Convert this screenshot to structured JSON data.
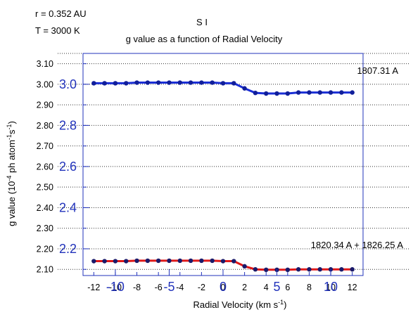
{
  "header": {
    "distance": "r = 0.352 AU",
    "temperature": "T = 3000 K",
    "species": "S I"
  },
  "chart_data": {
    "type": "line",
    "title": "g value as a function of Radial Velocity",
    "xlabel_main": "Radial Velocity (km s",
    "xlabel_sup": "-1",
    "xlabel_end": ")",
    "ylabel": {
      "pre": "g value (10",
      "sup1": "-4",
      "mid": " ph atom",
      "sup2": "-1",
      "mid2": "s",
      "sup3": "-1",
      "post": ")"
    },
    "xlim": [
      -13,
      13
    ],
    "ylim": [
      2.07,
      3.15
    ],
    "x_ticks": [
      -12,
      -10,
      -8,
      -6,
      -4,
      -2,
      0,
      2,
      4,
      6,
      8,
      10,
      12
    ],
    "x_tick_labels": [
      "-12",
      "-10",
      "-8",
      "-6",
      "-4",
      "-2",
      "0",
      "2",
      "4",
      "6",
      "8",
      "10",
      "12"
    ],
    "y_ticks": [
      2.1,
      2.2,
      2.3,
      2.4,
      2.5,
      2.6,
      2.7,
      2.8,
      2.9,
      3.0,
      3.1
    ],
    "y_tick_labels": [
      "2.10",
      "2.20",
      "2.30",
      "2.40",
      "2.50",
      "2.60",
      "2.70",
      "2.80",
      "2.90",
      "3.00",
      "3.10"
    ],
    "grid": "horizontal dotted",
    "overlay_x_ticks": [
      -10,
      -5,
      0,
      5,
      10
    ],
    "overlay_x_labels": [
      "-10",
      "-5",
      "0",
      "5",
      "10"
    ],
    "overlay_y_ticks": [
      2.2,
      2.4,
      2.6,
      2.8,
      3.0
    ],
    "overlay_y_labels": [
      "2.2",
      "2.4",
      "2.6",
      "2.8",
      "3.0"
    ],
    "x": [
      -12,
      -11,
      -10,
      -9,
      -8,
      -7,
      -6,
      -5,
      -4,
      -3,
      -2,
      -1,
      0,
      1,
      2,
      3,
      4,
      5,
      6,
      7,
      8,
      9,
      10,
      11,
      12
    ],
    "series": [
      {
        "name": "1807.31 A",
        "color": "#1a2ed6",
        "marker_color": "#101e9a",
        "values": [
          3.005,
          3.005,
          3.005,
          3.005,
          3.008,
          3.008,
          3.008,
          3.008,
          3.008,
          3.008,
          3.008,
          3.008,
          3.005,
          3.005,
          2.98,
          2.958,
          2.955,
          2.955,
          2.955,
          2.96,
          2.96,
          2.96,
          2.96,
          2.96,
          2.96
        ]
      },
      {
        "name": "1820.34 A + 1826.25 A",
        "color": "#e01818",
        "marker_color": "#1a1a6a",
        "values": [
          2.14,
          2.14,
          2.14,
          2.14,
          2.142,
          2.142,
          2.142,
          2.142,
          2.142,
          2.142,
          2.142,
          2.142,
          2.14,
          2.14,
          2.115,
          2.1,
          2.098,
          2.098,
          2.098,
          2.1,
          2.1,
          2.1,
          2.1,
          2.1,
          2.1
        ]
      }
    ]
  }
}
